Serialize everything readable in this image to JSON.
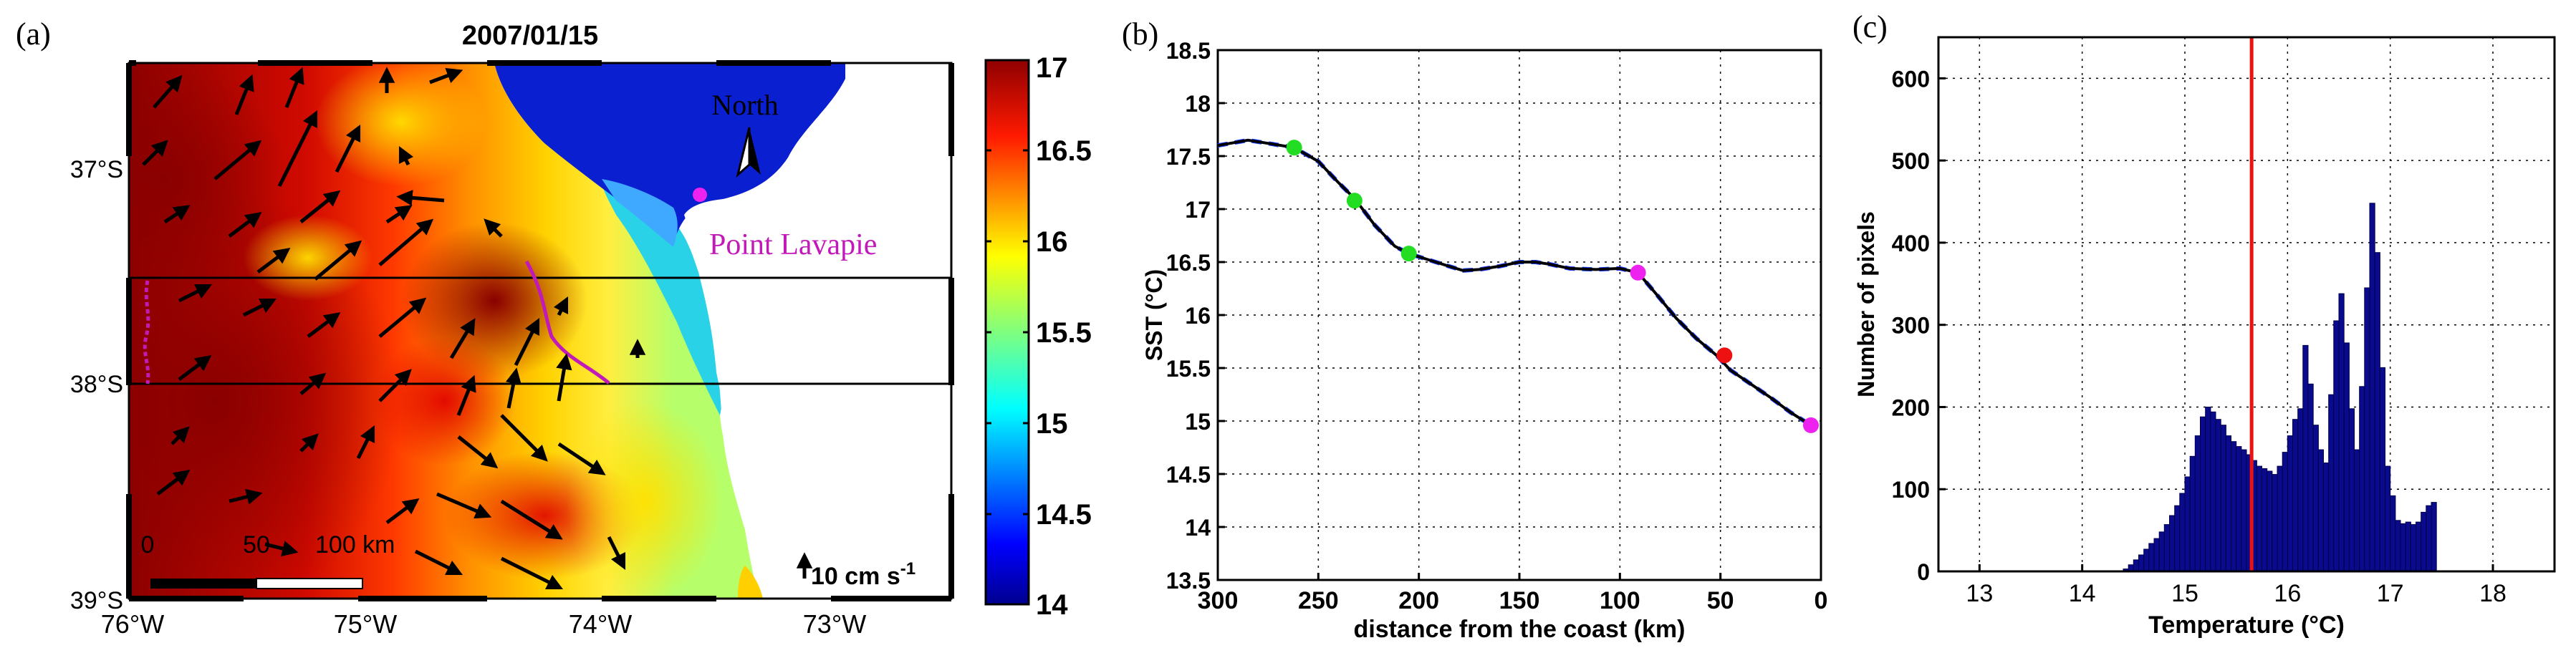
{
  "chart_data": [
    {
      "panel_label": "(a)",
      "type": "heatmap",
      "title": "2007/01/15",
      "description": "Sea surface temperature map with current vectors",
      "colorbar": {
        "ticks": [
          "17",
          "16.5",
          "16",
          "15.5",
          "15",
          "14.5",
          "14"
        ],
        "range": [
          14,
          17
        ],
        "colors": [
          "#00008f",
          "#0000ff",
          "#007fff",
          "#00ffff",
          "#7fff7f",
          "#ffff00",
          "#ff7f00",
          "#ff0000",
          "#8f0000"
        ]
      },
      "lon_ticks": [
        "76°W",
        "75°W",
        "74°W",
        "73°W"
      ],
      "lat_ticks": [
        "37°S",
        "38°S",
        "39°S"
      ],
      "lon_range": [
        -76,
        -72.5
      ],
      "lat_range": [
        -39,
        -36.5
      ],
      "north_label": "North",
      "place_label": "Point Lavapie",
      "scale_bar": {
        "ticks": [
          "0",
          "50",
          "100 km"
        ]
      },
      "vector_label": "10 cm s",
      "vector_label_exponent": "-1",
      "colors": {
        "magenta": "#c21ab8",
        "land": "#ffffff",
        "arrow": "#000000"
      }
    },
    {
      "panel_label": "(b)",
      "type": "line",
      "xlabel": "distance from the coast (km)",
      "ylabel": "SST (°C)",
      "xlim": [
        300,
        0
      ],
      "ylim": [
        13.5,
        18.5
      ],
      "xticks": [
        "300",
        "250",
        "200",
        "150",
        "100",
        "50",
        "0"
      ],
      "yticks": [
        "13.5",
        "14",
        "14.5",
        "15",
        "15.5",
        "16",
        "16.5",
        "17",
        "17.5",
        "18",
        "18.5"
      ],
      "x": [
        300,
        285,
        275,
        262,
        250,
        240,
        232,
        222,
        212,
        205,
        195,
        185,
        178,
        170,
        160,
        150,
        142,
        135,
        125,
        112,
        100,
        91,
        82,
        72,
        62,
        52,
        45,
        35,
        25,
        15,
        5
      ],
      "y": [
        17.6,
        17.65,
        17.62,
        17.58,
        17.45,
        17.25,
        17.1,
        16.85,
        16.65,
        16.58,
        16.52,
        16.46,
        16.42,
        16.43,
        16.46,
        16.5,
        16.5,
        16.48,
        16.44,
        16.43,
        16.44,
        16.4,
        16.2,
        15.97,
        15.78,
        15.62,
        15.48,
        15.35,
        15.22,
        15.08,
        14.96
      ],
      "markers": [
        {
          "x": 262,
          "y": 17.58,
          "color": "#22dd22"
        },
        {
          "x": 232,
          "y": 17.08,
          "color": "#22dd22"
        },
        {
          "x": 205,
          "y": 16.58,
          "color": "#22dd22"
        },
        {
          "x": 91,
          "y": 16.4,
          "color": "#ee22ee"
        },
        {
          "x": 48,
          "y": 15.62,
          "color": "#ee1111"
        },
        {
          "x": 5,
          "y": 14.96,
          "color": "#ee22ee"
        }
      ],
      "line_color": "#000000",
      "dash_color": "#1a3cff"
    },
    {
      "panel_label": "(c)",
      "type": "bar",
      "xlabel": "Temperature (°C)",
      "ylabel": "Number of pixels",
      "xlim": [
        12.6,
        18.6
      ],
      "ylim": [
        0,
        650
      ],
      "xticks": [
        "13",
        "14",
        "15",
        "16",
        "17",
        "18"
      ],
      "yticks": [
        "0",
        "100",
        "200",
        "300",
        "400",
        "500",
        "600"
      ],
      "bin_start": 14.4,
      "bin_width": 0.05,
      "values": [
        3,
        8,
        14,
        20,
        27,
        34,
        40,
        48,
        57,
        68,
        80,
        95,
        115,
        140,
        165,
        188,
        200,
        194,
        185,
        178,
        165,
        158,
        152,
        148,
        142,
        135,
        128,
        125,
        122,
        118,
        128,
        145,
        165,
        185,
        198,
        275,
        228,
        178,
        148,
        132,
        215,
        305,
        338,
        278,
        198,
        148,
        225,
        345,
        448,
        388,
        248,
        128,
        92,
        62,
        58,
        60,
        57,
        60,
        72,
        80,
        84
      ],
      "vline": 15.65,
      "bar_color": "#0a0a8c",
      "vline_color": "#ee1111"
    }
  ]
}
